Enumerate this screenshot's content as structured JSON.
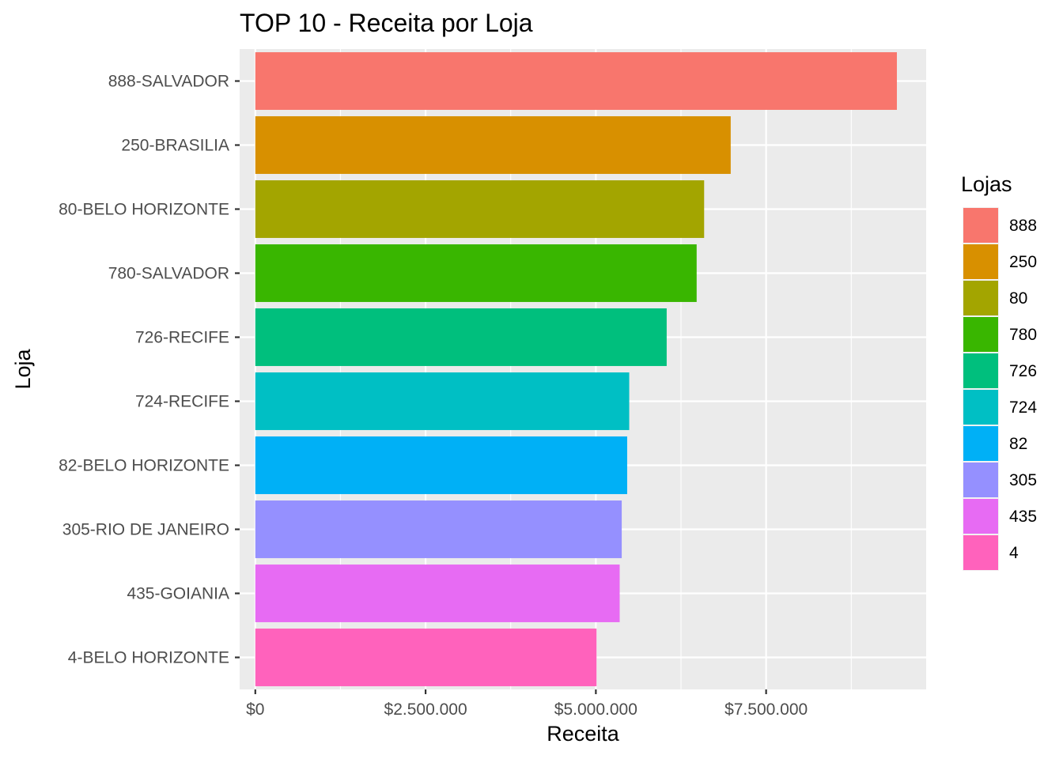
{
  "chart_data": {
    "type": "bar",
    "orientation": "horizontal",
    "title": "TOP 10 - Receita por Loja",
    "xlabel": "Receita",
    "ylabel": "Loja",
    "xlim": [
      -230000,
      9850000
    ],
    "xticks": [
      {
        "value": 0,
        "label": "$0"
      },
      {
        "value": 2500000,
        "label": "$2.500.000"
      },
      {
        "value": 5000000,
        "label": "$5.000.000"
      },
      {
        "value": 7500000,
        "label": "$7.500.000"
      }
    ],
    "grid": true,
    "legend": {
      "title": "Lojas",
      "position": "right"
    },
    "categories": [
      "888-SALVADOR",
      "250-BRASILIA",
      "80-BELO HORIZONTE",
      "780-SALVADOR",
      "726-RECIFE",
      "724-RECIFE",
      "82-BELO HORIZONTE",
      "305-RIO DE JANEIRO",
      "435-GOIANIA",
      "4-BELO HORIZONTE"
    ],
    "legend_labels": [
      "888",
      "250",
      "80",
      "780",
      "726",
      "724",
      "82",
      "305",
      "435",
      "4"
    ],
    "values": [
      9420000,
      6980000,
      6590000,
      6480000,
      6040000,
      5490000,
      5460000,
      5380000,
      5350000,
      5010000
    ],
    "colors": [
      "#F8766D",
      "#D89000",
      "#A3A500",
      "#39B600",
      "#00BF7D",
      "#00BFC4",
      "#00B0F6",
      "#9590FF",
      "#E76BF3",
      "#FF62BC"
    ]
  }
}
